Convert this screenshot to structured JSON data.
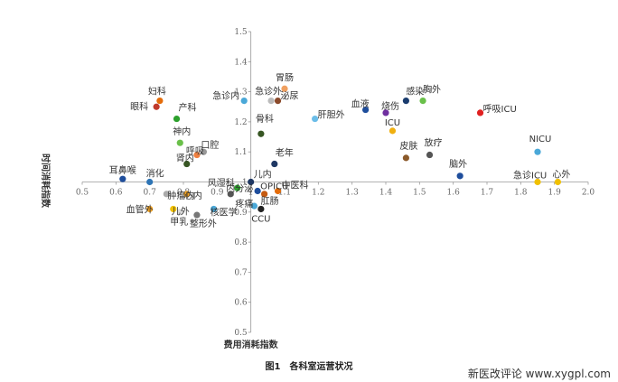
{
  "chart_data": {
    "type": "scatter",
    "title": "",
    "caption": "图1　各科室运营状况",
    "xlabel": "费用消耗指数",
    "ylabel": "时间消耗指数",
    "xlim": [
      0.5,
      2.0
    ],
    "ylim": [
      0.5,
      1.5
    ],
    "x_ticks": [
      "0.5",
      "0.6",
      "0.7",
      "0.8",
      "0.9",
      "1",
      "1.1",
      "1.2",
      "1.3",
      "1.4",
      "1.5",
      "1.6",
      "1.7",
      "1.8",
      "1.9",
      "2.0"
    ],
    "y_ticks": [
      "0.5",
      "0.6",
      "0.7",
      "0.8",
      "0.9",
      "1",
      "1.1",
      "1.2",
      "1.3",
      "1.4",
      "1.5"
    ],
    "axes_cross": [
      1.0,
      1.0
    ],
    "grid": false,
    "points": [
      {
        "label": "妇科",
        "x": 0.73,
        "y": 1.27,
        "color": "#e46c0a"
      },
      {
        "label": "眼科",
        "x": 0.72,
        "y": 1.25,
        "color": "#c0392b"
      },
      {
        "label": "产科",
        "x": 0.78,
        "y": 1.21,
        "color": "#2ca02c"
      },
      {
        "label": "急诊内",
        "x": 0.98,
        "y": 1.27,
        "color": "#4aa8d8"
      },
      {
        "label": "急诊外",
        "x": 1.06,
        "y": 1.27,
        "color": "#bbbbbb"
      },
      {
        "label": "胃肠",
        "x": 1.1,
        "y": 1.31,
        "color": "#f0a060"
      },
      {
        "label": "泌尿",
        "x": 1.08,
        "y": 1.27,
        "color": "#8b4a2b"
      },
      {
        "label": "肝胆外",
        "x": 1.19,
        "y": 1.21,
        "color": "#6bbde8"
      },
      {
        "label": "血液",
        "x": 1.34,
        "y": 1.24,
        "color": "#1f4e9c"
      },
      {
        "label": "感染",
        "x": 1.46,
        "y": 1.27,
        "color": "#1a3c6e"
      },
      {
        "label": "胸外",
        "x": 1.51,
        "y": 1.27,
        "color": "#6ac04a"
      },
      {
        "label": "烧伤",
        "x": 1.4,
        "y": 1.23,
        "color": "#7030a0"
      },
      {
        "label": "呼吸ICU",
        "x": 1.68,
        "y": 1.23,
        "color": "#e02020"
      },
      {
        "label": "ICU",
        "x": 1.42,
        "y": 1.17,
        "color": "#f0b010"
      },
      {
        "label": "神内",
        "x": 0.79,
        "y": 1.13,
        "color": "#6ac04a"
      },
      {
        "label": "口腔",
        "x": 0.86,
        "y": 1.1,
        "color": "#999999"
      },
      {
        "label": "呼吸",
        "x": 0.84,
        "y": 1.09,
        "color": "#f08040"
      },
      {
        "label": "肾内",
        "x": 0.81,
        "y": 1.06,
        "color": "#375623"
      },
      {
        "label": "骨科",
        "x": 1.03,
        "y": 1.16,
        "color": "#375623"
      },
      {
        "label": "老年",
        "x": 1.07,
        "y": 1.06,
        "color": "#1f3864"
      },
      {
        "label": "皮肤",
        "x": 1.46,
        "y": 1.08,
        "color": "#8b5a2b"
      },
      {
        "label": "放疗",
        "x": 1.53,
        "y": 1.09,
        "color": "#555555"
      },
      {
        "label": "NICU",
        "x": 1.85,
        "y": 1.1,
        "color": "#4aa8d8"
      },
      {
        "label": "耳鼻喉",
        "x": 0.62,
        "y": 1.01,
        "color": "#1f4e9c"
      },
      {
        "label": "消化",
        "x": 0.7,
        "y": 1.0,
        "color": "#2e75b6"
      },
      {
        "label": "脑外",
        "x": 1.62,
        "y": 1.02,
        "color": "#1f4e9c"
      },
      {
        "label": "急诊ICU",
        "x": 1.85,
        "y": 1.0,
        "color": "#f0c000"
      },
      {
        "label": "心外",
        "x": 1.91,
        "y": 1.0,
        "color": "#f0c000"
      },
      {
        "label": "儿内",
        "x": 1.0,
        "y": 1.0,
        "color": "#1f3864"
      },
      {
        "label": "风湿科",
        "x": 0.96,
        "y": 0.98,
        "color": "#2ca02c"
      },
      {
        "label": "OPICU",
        "x": 1.02,
        "y": 0.97,
        "color": "#1f4e9c"
      },
      {
        "label": "中医科",
        "x": 1.08,
        "y": 0.97,
        "color": "#e46c0a"
      },
      {
        "label": "肿瘤内",
        "x": 0.75,
        "y": 0.96,
        "color": "#aaaaaa"
      },
      {
        "label": "心内",
        "x": 0.81,
        "y": 0.96,
        "color": "#f0a020"
      },
      {
        "label": "内分泌",
        "x": 0.94,
        "y": 0.96,
        "color": "#555555"
      },
      {
        "label": "肛肠",
        "x": 1.04,
        "y": 0.96,
        "color": "#c55a11"
      },
      {
        "label": "疼痛",
        "x": 1.01,
        "y": 0.92,
        "color": "#4aa8d8"
      },
      {
        "label": "CCU",
        "x": 1.03,
        "y": 0.91,
        "color": "#222222"
      },
      {
        "label": "血管外",
        "x": 0.7,
        "y": 0.91,
        "color": "#f0a020"
      },
      {
        "label": "儿外",
        "x": 0.77,
        "y": 0.91,
        "color": "#f0c000"
      },
      {
        "label": "甲乳",
        "x": 0.79,
        "y": 0.9,
        "color": "#dddddd"
      },
      {
        "label": "核医学",
        "x": 0.89,
        "y": 0.91,
        "color": "#4aa8d8"
      },
      {
        "label": "整形外",
        "x": 0.84,
        "y": 0.89,
        "color": "#777777"
      }
    ],
    "label_offsets": [
      [
        -3,
        -7,
        "middle"
      ],
      [
        -9,
        3,
        "end"
      ],
      [
        2,
        -9,
        "start"
      ],
      [
        -5,
        -2,
        "end"
      ],
      [
        -3,
        -7,
        "middle"
      ],
      [
        0,
        -9,
        "middle"
      ],
      [
        3,
        -2,
        "start"
      ],
      [
        3,
        -1,
        "start"
      ],
      [
        -6,
        -3,
        "middle"
      ],
      [
        10,
        -7,
        "middle"
      ],
      [
        0,
        -9,
        "start"
      ],
      [
        5,
        -4,
        "middle"
      ],
      [
        3,
        -1,
        "start"
      ],
      [
        0,
        -6,
        "middle"
      ],
      [
        2,
        -9,
        "middle"
      ],
      [
        -3,
        -4,
        "start"
      ],
      [
        -12,
        -1,
        "start"
      ],
      [
        -12,
        -3,
        "start"
      ],
      [
        4,
        -13,
        "middle"
      ],
      [
        1,
        -9,
        "start"
      ],
      [
        3,
        -10,
        "middle"
      ],
      [
        4,
        -10,
        "middle"
      ],
      [
        3,
        -11,
        "middle"
      ],
      [
        0,
        -6,
        "middle"
      ],
      [
        -4,
        -6,
        "start"
      ],
      [
        -2,
        -10,
        "middle"
      ],
      [
        -27,
        -4,
        "start"
      ],
      [
        4,
        -5,
        "middle"
      ],
      [
        3,
        -5,
        "start"
      ],
      [
        -3,
        -2,
        "end"
      ],
      [
        3,
        -2,
        "start"
      ],
      [
        4,
        -3,
        "start"
      ],
      [
        1,
        5,
        "start"
      ],
      [
        -3,
        5,
        "start"
      ],
      [
        -5,
        -3,
        "start"
      ],
      [
        -4,
        11,
        "start"
      ],
      [
        -21,
        1,
        "start"
      ],
      [
        0,
        14,
        "middle"
      ],
      [
        -26,
        4,
        "start"
      ],
      [
        -2,
        6,
        "start"
      ],
      [
        -11,
        14,
        "start"
      ],
      [
        -4,
        7,
        "start"
      ],
      [
        -8,
        13,
        "start"
      ]
    ]
  },
  "watermark": "新医改评论 www.xygpl.com"
}
